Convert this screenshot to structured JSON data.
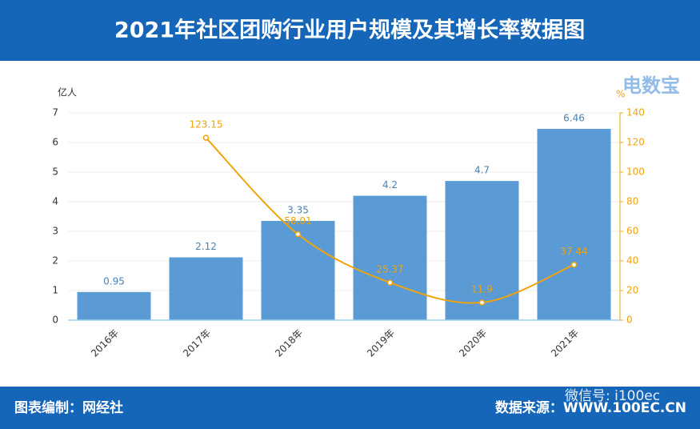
{
  "chart_data": {
    "type": "bar-line",
    "title": "2021年社区团购行业用户规模及其增长率数据图",
    "categories": [
      "2016年",
      "2017年",
      "2018年",
      "2019年",
      "2020年",
      "2021年"
    ],
    "series": [
      {
        "type": "bar",
        "color": "#5b9bd5",
        "values": [
          0.95,
          2.12,
          3.35,
          4.2,
          4.7,
          6.46
        ]
      },
      {
        "type": "line",
        "axis": "y2",
        "color": "#f0a30a",
        "values": [
          null,
          123.15,
          58.01,
          25.37,
          11.9,
          37.44
        ]
      }
    ],
    "ylabel": "亿人",
    "y2label": "%",
    "ylim": [
      0,
      7
    ],
    "yticks": [
      0,
      1,
      2,
      3,
      4,
      5,
      6,
      7
    ],
    "y2lim": [
      0,
      140
    ],
    "y2ticks": [
      0,
      20,
      40,
      60,
      80,
      100,
      120,
      140
    ],
    "grid": true
  },
  "logo": "电数宝",
  "footer": {
    "left": "图表编制：网经社",
    "right": "数据来源：WWW.100EC.CN",
    "watermark": "微信号: i100ec"
  }
}
